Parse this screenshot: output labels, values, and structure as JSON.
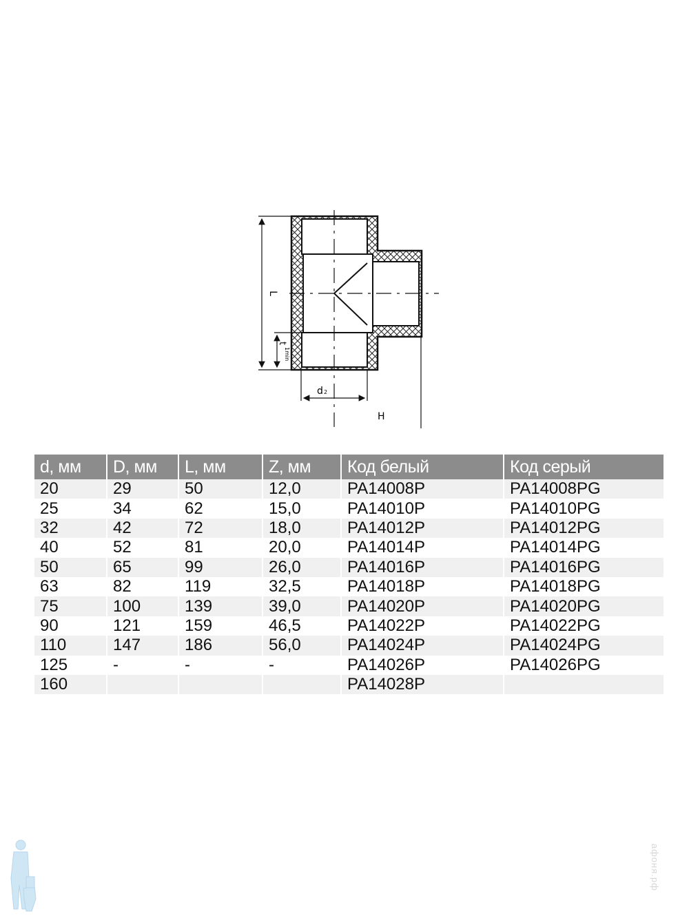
{
  "diagram": {
    "labels": {
      "length": "L",
      "socket_depth": "t",
      "socket_depth_sub": "1min",
      "inner_diameter": "d",
      "inner_diameter_sub": "2",
      "height": "H"
    }
  },
  "table": {
    "headers": [
      "d, мм",
      "D, мм",
      "L, мм",
      "Z, мм",
      "Код белый",
      "Код серый"
    ],
    "rows": [
      [
        "20",
        "29",
        "50",
        "12,0",
        "PA14008P",
        "PA14008PG"
      ],
      [
        "25",
        "34",
        "62",
        "15,0",
        "PA14010P",
        "PA14010PG"
      ],
      [
        "32",
        "42",
        "72",
        "18,0",
        "PA14012P",
        "PA14012PG"
      ],
      [
        "40",
        "52",
        "81",
        "20,0",
        "PA14014P",
        "PA14014PG"
      ],
      [
        "50",
        "65",
        "99",
        "26,0",
        "PA14016P",
        "PA14016PG"
      ],
      [
        "63",
        "82",
        "119",
        "32,5",
        "PA14018P",
        "PA14018PG"
      ],
      [
        "75",
        "100",
        "139",
        "39,0",
        "PA14020P",
        "PA14020PG"
      ],
      [
        "90",
        "121",
        "159",
        "46,5",
        "PA14022P",
        "PA14022PG"
      ],
      [
        "110",
        "147",
        "186",
        "56,0",
        "PA14024P",
        "PA14024PG"
      ],
      [
        "125",
        "-",
        "-",
        "-",
        "PA14026P",
        "PA14026PG"
      ],
      [
        "160",
        "",
        "",
        "",
        "PA14028P",
        ""
      ]
    ]
  },
  "watermark": {
    "text": "афоня.рф"
  },
  "colors": {
    "header_bg": "#8c8c8c",
    "stripe": "#f0f0f0",
    "mascot": "#cfe6f5"
  }
}
